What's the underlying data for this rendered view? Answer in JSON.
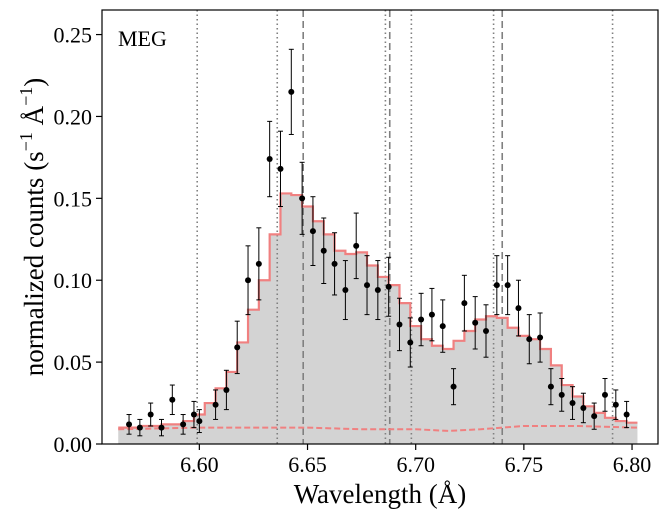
{
  "chart_data": {
    "type": "step",
    "panel_label": "MEG",
    "xlabel": "Wavelength (Å)",
    "ylabel": {
      "prefix": "normalized counts (s",
      "exp1": "−1",
      "mid": " Å",
      "exp2": "−1",
      "suffix": ")"
    },
    "xlim": [
      6.555,
      6.812
    ],
    "ylim": [
      0.0,
      0.265
    ],
    "xticks": [
      6.6,
      6.65,
      6.7,
      6.75,
      6.8
    ],
    "xtick_labels": [
      "6.60",
      "6.65",
      "6.70",
      "6.75",
      "6.80"
    ],
    "yticks": [
      0.0,
      0.05,
      0.1,
      0.15,
      0.2,
      0.25
    ],
    "ytick_labels": [
      "0.00",
      "0.05",
      "0.10",
      "0.15",
      "0.20",
      "0.25"
    ],
    "colors": {
      "model": "#F08080",
      "fill": "#D3D3D3",
      "data": "#000000",
      "ref_lines": "#808080"
    },
    "vlines_dotted": [
      6.599,
      6.636,
      6.686,
      6.698,
      6.736,
      6.791
    ],
    "vlines_dashed": [
      6.648,
      6.688,
      6.74
    ],
    "model_steps": {
      "name": "model",
      "edges": [
        6.5625,
        6.5675,
        6.5725,
        6.5775,
        6.5825,
        6.5875,
        6.5925,
        6.5975,
        6.6025,
        6.6075,
        6.6125,
        6.6175,
        6.6225,
        6.6275,
        6.6325,
        6.6375,
        6.6425,
        6.6475,
        6.6525,
        6.6575,
        6.6625,
        6.6675,
        6.6725,
        6.6775,
        6.6825,
        6.6875,
        6.6925,
        6.6975,
        6.7025,
        6.7075,
        6.7125,
        6.7175,
        6.7225,
        6.7275,
        6.7325,
        6.7375,
        6.7425,
        6.7475,
        6.7525,
        6.7575,
        6.7625,
        6.7675,
        6.7725,
        6.7775,
        6.7825,
        6.7875,
        6.7925,
        6.7975,
        6.8025
      ],
      "values": [
        0.01,
        0.01,
        0.011,
        0.011,
        0.012,
        0.012,
        0.014,
        0.018,
        0.025,
        0.034,
        0.044,
        0.062,
        0.082,
        0.1,
        0.128,
        0.153,
        0.152,
        0.145,
        0.136,
        0.128,
        0.118,
        0.116,
        0.117,
        0.109,
        0.102,
        0.097,
        0.086,
        0.072,
        0.064,
        0.06,
        0.058,
        0.063,
        0.069,
        0.076,
        0.078,
        0.077,
        0.071,
        0.066,
        0.064,
        0.058,
        0.048,
        0.036,
        0.029,
        0.023,
        0.019,
        0.016,
        0.014,
        0.013
      ]
    },
    "background_model": {
      "name": "background",
      "x": [
        6.5625,
        6.6,
        6.625,
        6.65,
        6.675,
        6.7,
        6.715,
        6.73,
        6.75,
        6.775,
        6.8025
      ],
      "y": [
        0.009,
        0.01,
        0.01,
        0.01,
        0.009,
        0.009,
        0.008,
        0.009,
        0.011,
        0.011,
        0.01
      ]
    },
    "data_points": {
      "name": "observed",
      "x": [
        6.5675,
        6.5725,
        6.5775,
        6.5825,
        6.5875,
        6.5925,
        6.5975,
        6.6,
        6.6075,
        6.6125,
        6.6175,
        6.6225,
        6.6275,
        6.6325,
        6.6375,
        6.6425,
        6.6475,
        6.6525,
        6.6575,
        6.6625,
        6.6675,
        6.6725,
        6.6775,
        6.6825,
        6.6875,
        6.6925,
        6.6975,
        6.7025,
        6.7075,
        6.7125,
        6.7175,
        6.7225,
        6.7275,
        6.7325,
        6.7375,
        6.7425,
        6.7475,
        6.7525,
        6.7575,
        6.7625,
        6.7675,
        6.7725,
        6.7775,
        6.7825,
        6.7875,
        6.7925,
        6.7975
      ],
      "y": [
        0.012,
        0.01,
        0.018,
        0.01,
        0.027,
        0.012,
        0.018,
        0.014,
        0.024,
        0.033,
        0.059,
        0.1,
        0.11,
        0.174,
        0.168,
        0.215,
        0.15,
        0.13,
        0.118,
        0.11,
        0.094,
        0.121,
        0.097,
        0.094,
        0.096,
        0.073,
        0.062,
        0.076,
        0.079,
        0.072,
        0.035,
        0.086,
        0.074,
        0.069,
        0.097,
        0.097,
        0.083,
        0.064,
        0.065,
        0.035,
        0.03,
        0.025,
        0.022,
        0.017,
        0.03,
        0.024,
        0.018
      ],
      "yerr": [
        0.006,
        0.005,
        0.007,
        0.005,
        0.009,
        0.006,
        0.008,
        0.007,
        0.009,
        0.012,
        0.016,
        0.021,
        0.022,
        0.023,
        0.023,
        0.026,
        0.022,
        0.021,
        0.02,
        0.019,
        0.018,
        0.02,
        0.018,
        0.018,
        0.018,
        0.016,
        0.015,
        0.016,
        0.016,
        0.016,
        0.011,
        0.017,
        0.016,
        0.016,
        0.018,
        0.018,
        0.017,
        0.015,
        0.015,
        0.011,
        0.01,
        0.01,
        0.009,
        0.008,
        0.01,
        0.009,
        0.008
      ]
    }
  }
}
